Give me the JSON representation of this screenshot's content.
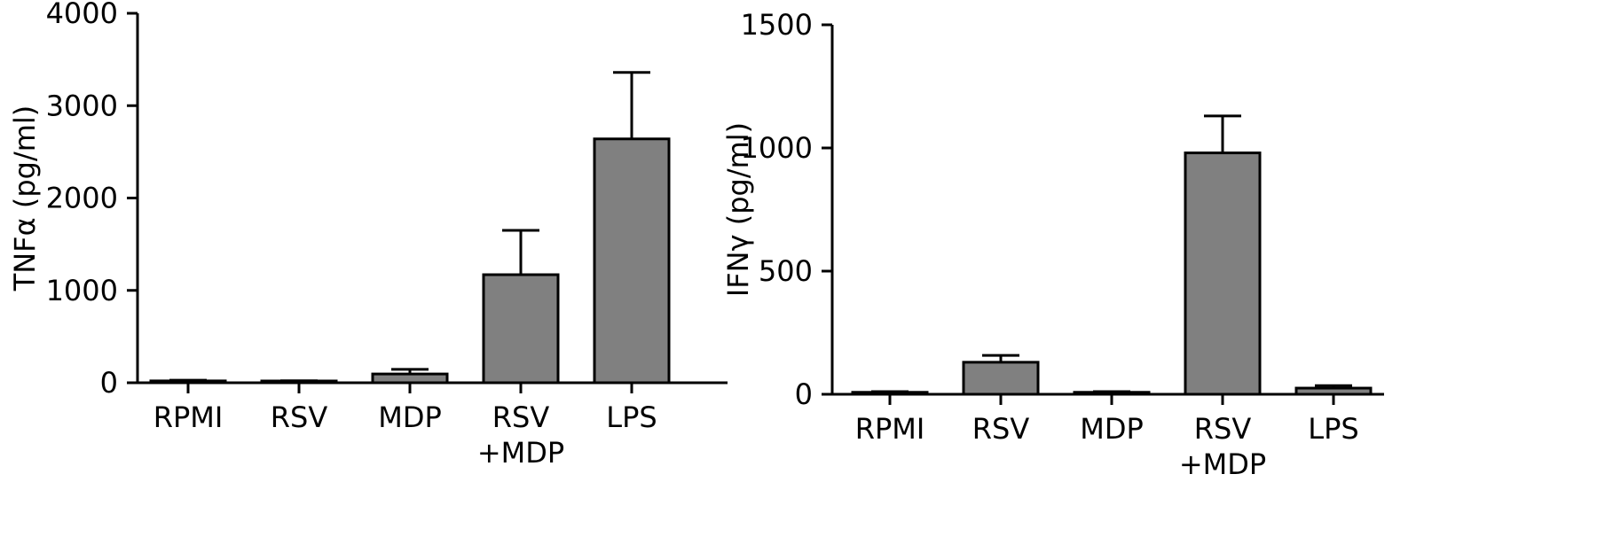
{
  "colors": {
    "bar": "#808080",
    "axis": "#000000"
  },
  "chart_data": [
    {
      "type": "bar",
      "title": "",
      "xlabel": "",
      "ylabel": "TNFα (pg/ml)",
      "ylim": [
        0,
        4000
      ],
      "yticks": [
        "0",
        "1000",
        "2000",
        "3000",
        "4000"
      ],
      "categories": [
        [
          "RPMI"
        ],
        [
          "RSV"
        ],
        [
          "MDP"
        ],
        [
          "RSV",
          "+MDP"
        ],
        [
          "LPS"
        ]
      ],
      "values": [
        20,
        15,
        95,
        1170,
        2640
      ],
      "errors": [
        8,
        6,
        50,
        480,
        720
      ],
      "grid": false,
      "legend": "none"
    },
    {
      "type": "bar",
      "title": "",
      "xlabel": "",
      "ylabel": "IFNγ (pg/ml)",
      "ylim": [
        0,
        1500
      ],
      "yticks": [
        "0",
        "500",
        "1000",
        "1500"
      ],
      "categories": [
        [
          "RPMI"
        ],
        [
          "RSV"
        ],
        [
          "MDP"
        ],
        [
          "RSV",
          "+MDP"
        ],
        [
          "LPS"
        ]
      ],
      "values": [
        8,
        130,
        8,
        980,
        25
      ],
      "errors": [
        3,
        28,
        3,
        150,
        10
      ],
      "grid": false,
      "legend": "none"
    }
  ]
}
